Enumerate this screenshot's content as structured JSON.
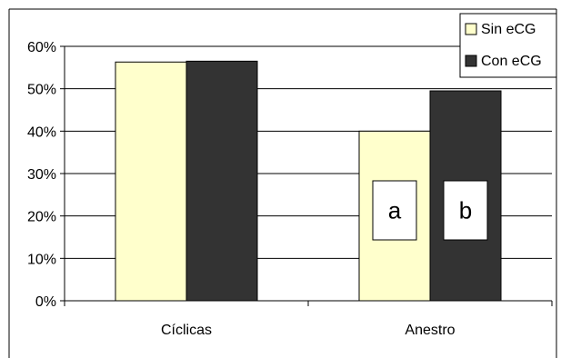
{
  "chart_data": {
    "type": "bar",
    "title": "",
    "xlabel": "",
    "ylabel": "",
    "categories": [
      "Cíclicas",
      "Anestro"
    ],
    "series": [
      {
        "name": "Sin eCG",
        "values": [
          56.3,
          40.0
        ],
        "color": "#ffffcc"
      },
      {
        "name": "Con eCG",
        "values": [
          56.5,
          49.5
        ],
        "color": "#333333"
      }
    ],
    "ylim": [
      0,
      60
    ],
    "yticks": [
      "0%",
      "10%",
      "20%",
      "30%",
      "40%",
      "50%",
      "60%"
    ],
    "grid": true,
    "legend_position": "top-right",
    "annotations": [
      {
        "text": "a",
        "category": "Anestro",
        "series": "Sin eCG"
      },
      {
        "text": "b",
        "category": "Anestro",
        "series": "Con eCG"
      }
    ]
  }
}
